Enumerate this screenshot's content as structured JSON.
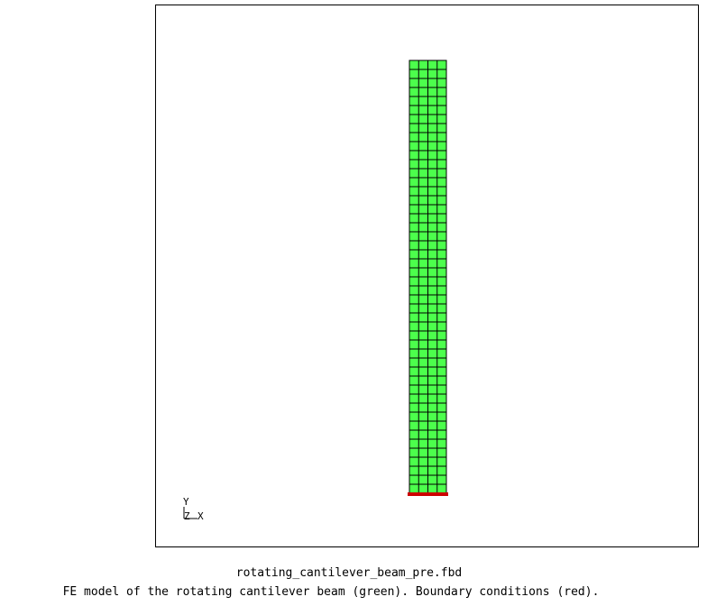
{
  "viewport": {
    "model": {
      "mesh_color": "#4cff4c",
      "line_color": "#000000",
      "bc_color": "#cc0000",
      "columns": 4,
      "rows": 48
    },
    "triad": {
      "y_label": "Y",
      "z_label": "Z",
      "x_label": "X"
    }
  },
  "caption": {
    "filename": "rotating_cantilever_beam_pre.fbd",
    "description": "FE model of the rotating cantilever beam (green). Boundary conditions (red)."
  }
}
